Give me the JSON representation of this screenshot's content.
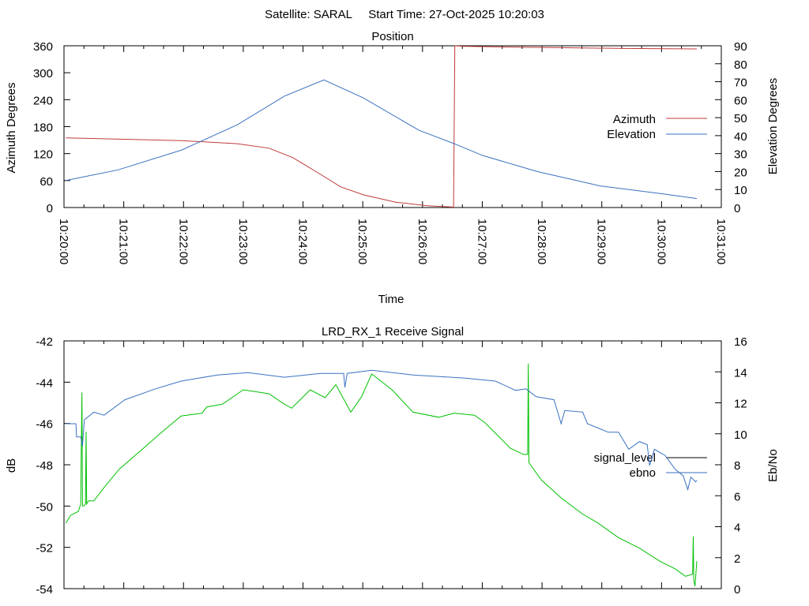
{
  "title": "Satellite: SARAL     Start Time: 27-Oct-2025 10:20:03",
  "chart_data": [
    {
      "type": "line",
      "title": "Position",
      "xlabel": "Time",
      "ylabel": "Azimuth Degrees",
      "y2label": "Elevation Degrees",
      "x_unit": "minutes after 10:20:00",
      "xlim": [
        0,
        11
      ],
      "ylim": [
        0,
        360
      ],
      "y2lim": [
        0,
        90
      ],
      "x_ticks": [
        "10:20:00",
        "10:21:00",
        "10:22:00",
        "10:23:00",
        "10:24:00",
        "10:25:00",
        "10:26:00",
        "10:27:00",
        "10:28:00",
        "10:29:00",
        "10:30:00",
        "10:31:00"
      ],
      "y_ticks": [
        "0",
        "60",
        "120",
        "180",
        "240",
        "300",
        "360"
      ],
      "y2_ticks": [
        "0",
        "10",
        "20",
        "30",
        "40",
        "50",
        "60",
        "70",
        "80",
        "90"
      ],
      "legend_placement": "right",
      "series": [
        {
          "name": "Azimuth",
          "axis": "left",
          "color": "#c03a3a",
          "x": [
            0.03,
            1.97,
            2.9,
            3.43,
            3.83,
            4.23,
            4.63,
            5.02,
            5.55,
            6.08,
            6.5,
            6.52,
            6.53,
            6.54,
            6.66,
            7.52,
            8.18,
            9.37,
            10.59
          ],
          "y": [
            155,
            149,
            142,
            132,
            111,
            79,
            46,
            28,
            12,
            4,
            1,
            1,
            180,
            360,
            359,
            357,
            356,
            354,
            353
          ]
        },
        {
          "name": "Elevation",
          "axis": "right",
          "color": "#3a72c0",
          "x": [
            0.03,
            0.91,
            1.97,
            2.9,
            3.69,
            4.35,
            5.01,
            5.94,
            6.53,
            7.0,
            7.92,
            8.98,
            10.04,
            10.59
          ],
          "y": [
            15,
            21,
            32,
            46,
            62,
            71,
            61,
            43,
            35.5,
            29,
            20,
            12,
            7.5,
            5
          ]
        }
      ]
    },
    {
      "type": "line",
      "title": "LRD_RX_1 Receive Signal",
      "xlabel": "",
      "ylabel": "dB",
      "y2label": "Eb/No",
      "x_unit": "minutes after 10:20:00",
      "xlim": [
        0,
        11
      ],
      "ylim": [
        -54,
        -42
      ],
      "y2lim": [
        0,
        16
      ],
      "y_ticks": [
        "-54",
        "-52",
        "-50",
        "-48",
        "-46",
        "-44",
        "-42"
      ],
      "y2_ticks": [
        "0",
        "2",
        "4",
        "6",
        "8",
        "10",
        "12",
        "14",
        "16"
      ],
      "legend_placement": "right",
      "series": [
        {
          "name": "signal_level",
          "axis": "left",
          "color": "#00c000",
          "legend_color": "#000000",
          "x": [
            0.03,
            0.11,
            0.24,
            0.28,
            0.29,
            0.3,
            0.31,
            0.33,
            0.36,
            0.37,
            0.38,
            0.41,
            0.5,
            0.67,
            0.93,
            1.27,
            1.62,
            1.96,
            2.31,
            2.39,
            2.65,
            3.0,
            3.43,
            3.69,
            3.81,
            4.12,
            4.37,
            4.55,
            4.8,
            4.98,
            5.15,
            5.49,
            5.84,
            6.27,
            6.53,
            6.87,
            7.04,
            7.3,
            7.47,
            7.69,
            7.76,
            7.77,
            7.78,
            7.8,
            7.99,
            8.33,
            8.68,
            8.94,
            9.28,
            9.63,
            9.97,
            10.23,
            10.4,
            10.52,
            10.53,
            10.54,
            10.56,
            10.59
          ],
          "y": [
            -50.83,
            -50.45,
            -50.26,
            -49.9,
            -47.2,
            -44.5,
            -50.0,
            -50.0,
            -49.9,
            -46.4,
            -49.9,
            -49.75,
            -49.75,
            -49.1,
            -48.2,
            -47.35,
            -46.46,
            -45.64,
            -45.5,
            -45.2,
            -45.07,
            -44.37,
            -44.56,
            -45.07,
            -45.26,
            -44.37,
            -44.75,
            -44.12,
            -45.45,
            -44.7,
            -43.6,
            -44.37,
            -45.45,
            -45.7,
            -45.5,
            -45.6,
            -45.95,
            -46.7,
            -47.2,
            -47.5,
            -47.5,
            -43.1,
            -47.9,
            -47.98,
            -48.74,
            -49.63,
            -50.39,
            -50.83,
            -51.53,
            -52.04,
            -52.67,
            -53.05,
            -53.4,
            -53.3,
            -51.47,
            -53.6,
            -53.88,
            -52.67
          ]
        },
        {
          "name": "ebno",
          "axis": "right",
          "color": "#3a72c0",
          "x": [
            0.03,
            0.2,
            0.21,
            0.28,
            0.31,
            0.34,
            0.5,
            0.67,
            1.02,
            1.53,
            1.96,
            2.57,
            3.08,
            3.69,
            4.29,
            4.68,
            4.7,
            4.74,
            5.15,
            5.84,
            6.7,
            7.22,
            7.56,
            7.73,
            7.9,
            8.2,
            8.32,
            8.38,
            8.68,
            8.76,
            9.11,
            9.28,
            9.45,
            9.63,
            9.76,
            9.8,
            9.88,
            10.06,
            10.23,
            10.36,
            10.44,
            10.49,
            10.57,
            10.59
          ],
          "y": [
            10.65,
            10.65,
            9.8,
            9.8,
            9.2,
            10.9,
            11.4,
            11.2,
            12.2,
            12.9,
            13.4,
            13.8,
            13.95,
            13.65,
            13.9,
            13.9,
            13.0,
            13.9,
            14.1,
            13.8,
            13.6,
            13.4,
            12.8,
            12.9,
            12.4,
            12.2,
            10.65,
            11.5,
            11.4,
            10.65,
            10.1,
            10.1,
            9.0,
            9.5,
            9.3,
            7.95,
            9.0,
            8.6,
            7.7,
            7.3,
            6.4,
            7.2,
            6.9,
            7.0
          ]
        }
      ]
    }
  ]
}
